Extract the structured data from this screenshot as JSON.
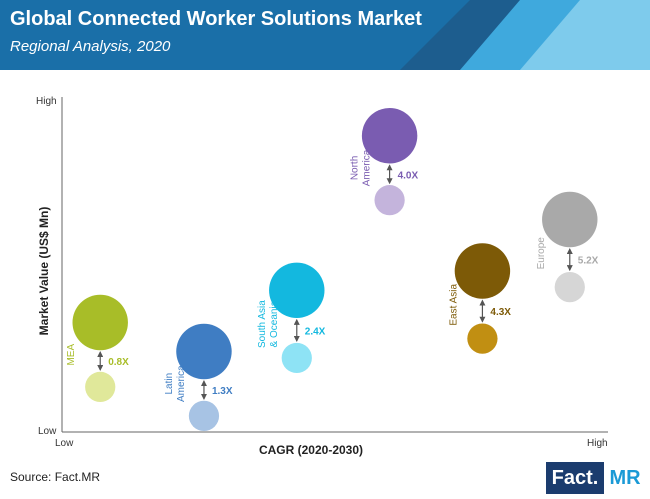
{
  "header": {
    "title": "Global Connected Worker Solutions Market",
    "subtitle": "Regional Analysis, 2020"
  },
  "colors": {
    "header_bg": "#1a6fa8",
    "deco_light": "#7ecbec",
    "deco_mid": "#3fa9dd",
    "axis": "#666666"
  },
  "chart_data": {
    "type": "bubble",
    "xlabel": "CAGR (2020-2030)",
    "ylabel": "Market Value (US$ Mn)",
    "x_ticks": {
      "low": "Low",
      "high": "High"
    },
    "y_ticks": {
      "low": "Low",
      "high": "High"
    },
    "xlim": [
      0,
      100
    ],
    "ylim": [
      0,
      100
    ],
    "series": [
      {
        "label": "MEA",
        "label_lines": [
          "MEA"
        ],
        "multiplier": "0.8X",
        "color": "#a8bd28",
        "small_color": "#e0e89a",
        "x": 7,
        "y_large": 34,
        "y_small": 14,
        "size_large": 0.44,
        "size_small": 0.24,
        "label_side": "left"
      },
      {
        "label": "Latin America",
        "label_lines": [
          "Latin",
          "America"
        ],
        "multiplier": "1.3X",
        "color": "#3f7dc3",
        "small_color": "#a7c3e4",
        "x": 26,
        "y_large": 25,
        "y_small": 5,
        "size_large": 0.44,
        "size_small": 0.24,
        "label_side": "left"
      },
      {
        "label": "South Asia & Oceania",
        "label_lines": [
          "South Asia",
          "& Oceania"
        ],
        "multiplier": "2.4X",
        "color": "#13b8df",
        "small_color": "#8ee3f5",
        "x": 43,
        "y_large": 44,
        "y_small": 23,
        "size_large": 0.44,
        "size_small": 0.24,
        "label_side": "left"
      },
      {
        "label": "North America",
        "label_lines": [
          "North",
          "America"
        ],
        "multiplier": "4.0X",
        "color": "#7a5cb1",
        "small_color": "#c4b4dc",
        "x": 60,
        "y_large": 92,
        "y_small": 72,
        "size_large": 0.44,
        "size_small": 0.24,
        "label_side": "left"
      },
      {
        "label": "East Asia",
        "label_lines": [
          "East Asia"
        ],
        "multiplier": "4.3X",
        "color": "#7d5a07",
        "small_color": "#c18f12",
        "x": 77,
        "y_large": 50,
        "y_small": 29,
        "size_large": 0.44,
        "size_small": 0.24,
        "label_side": "left"
      },
      {
        "label": "Europe",
        "label_lines": [
          "Europe"
        ],
        "multiplier": "5.2X",
        "color": "#a9a9a9",
        "small_color": "#d6d6d6",
        "x": 93,
        "y_large": 66,
        "y_small": 45,
        "size_large": 0.44,
        "size_small": 0.24,
        "label_side": "left"
      }
    ]
  },
  "footer": {
    "source": "Source: Fact.MR",
    "logo_left": "Fact.",
    "logo_right": "MR"
  }
}
